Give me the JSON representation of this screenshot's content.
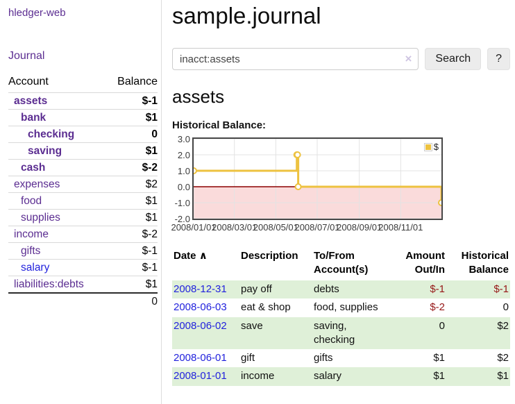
{
  "app": {
    "brand": "hledger-web"
  },
  "sidebar": {
    "nav": [
      {
        "label": "Journal"
      }
    ],
    "accounts": {
      "columns": {
        "account": "Account",
        "balance": "Balance"
      },
      "rows": [
        {
          "name": "assets",
          "balance": "$-1"
        },
        {
          "name": "bank",
          "balance": "$1"
        },
        {
          "name": "checking",
          "balance": "0"
        },
        {
          "name": "saving",
          "balance": "$1"
        },
        {
          "name": "cash",
          "balance": "$-2"
        },
        {
          "name": "expenses",
          "balance": "$2"
        },
        {
          "name": "food",
          "balance": "$1"
        },
        {
          "name": "supplies",
          "balance": "$1"
        },
        {
          "name": "income",
          "balance": "$-2"
        },
        {
          "name": "gifts",
          "balance": "$-1"
        },
        {
          "name": "salary",
          "balance": "$-1"
        },
        {
          "name": "liabilities:debts",
          "balance": "$1"
        }
      ],
      "total": "0"
    }
  },
  "header": {
    "title": "sample.journal"
  },
  "search": {
    "value": "inacct:assets",
    "clear_icon": "×",
    "submit_label": "Search",
    "help_label": "?"
  },
  "account_view": {
    "heading": "assets"
  },
  "chart_data": {
    "type": "line",
    "title": "Historical Balance:",
    "series": [
      {
        "name": "$",
        "color": "#edc240",
        "steps": true,
        "points": [
          [
            "2008-01-01",
            1
          ],
          [
            "2008-06-01",
            2
          ],
          [
            "2008-06-02",
            2
          ],
          [
            "2008-06-03",
            0
          ],
          [
            "2008-12-31",
            -1
          ]
        ]
      }
    ],
    "xlim": [
      "2008-01-01",
      "2008-12-31"
    ],
    "ylim": [
      -2,
      3
    ],
    "x_ticks": [
      {
        "label": "2008/01/01",
        "date": "2008-01-01"
      },
      {
        "label": "2008/03/01",
        "date": "2008-03-01"
      },
      {
        "label": "2008/05/01",
        "date": "2008-05-01"
      },
      {
        "label": "2008/07/01",
        "date": "2008-07-01"
      },
      {
        "label": "2008/09/01",
        "date": "2008-09-01"
      },
      {
        "label": "2008/11/01",
        "date": "2008-11-01"
      }
    ],
    "y_ticks": [
      {
        "label": "3.0",
        "value": 3
      },
      {
        "label": "2.0",
        "value": 2
      },
      {
        "label": "1.0",
        "value": 1
      },
      {
        "label": "0.0",
        "value": 0
      },
      {
        "label": "-1.0",
        "value": -1
      },
      {
        "label": "-2.0",
        "value": -2
      }
    ],
    "grid": true,
    "legend_position": "top-right",
    "negative_region_color": "#fadbdb",
    "zero_line_color": "#8b0000",
    "grid_color": "#e3e3e3"
  },
  "register": {
    "headers": [
      "Date",
      "Description",
      "To/From Account(s)",
      "Amount Out/In",
      "Historical Balance"
    ],
    "sort_asc_icon": "∧",
    "rows": [
      {
        "date": "2008-12-31",
        "description": "pay off",
        "accounts": "debts",
        "amount": "$-1",
        "balance": "$-1"
      },
      {
        "date": "2008-06-03",
        "description": "eat & shop",
        "accounts": "food, supplies",
        "amount": "$-2",
        "balance": "0"
      },
      {
        "date": "2008-06-02",
        "description": "save",
        "accounts": "saving, checking",
        "amount": "0",
        "balance": "$2"
      },
      {
        "date": "2008-06-01",
        "description": "gift",
        "accounts": "gifts",
        "amount": "$1",
        "balance": "$2"
      },
      {
        "date": "2008-01-01",
        "description": "income",
        "accounts": "salary",
        "amount": "$1",
        "balance": "$1"
      }
    ]
  },
  "colors": {
    "accent_purple": "#5b2d91",
    "link_blue": "#2222dd",
    "negative_red": "#961717",
    "muted_negative": "#c58989",
    "row_green": "#dff0d8",
    "series_gold": "#edc240"
  }
}
